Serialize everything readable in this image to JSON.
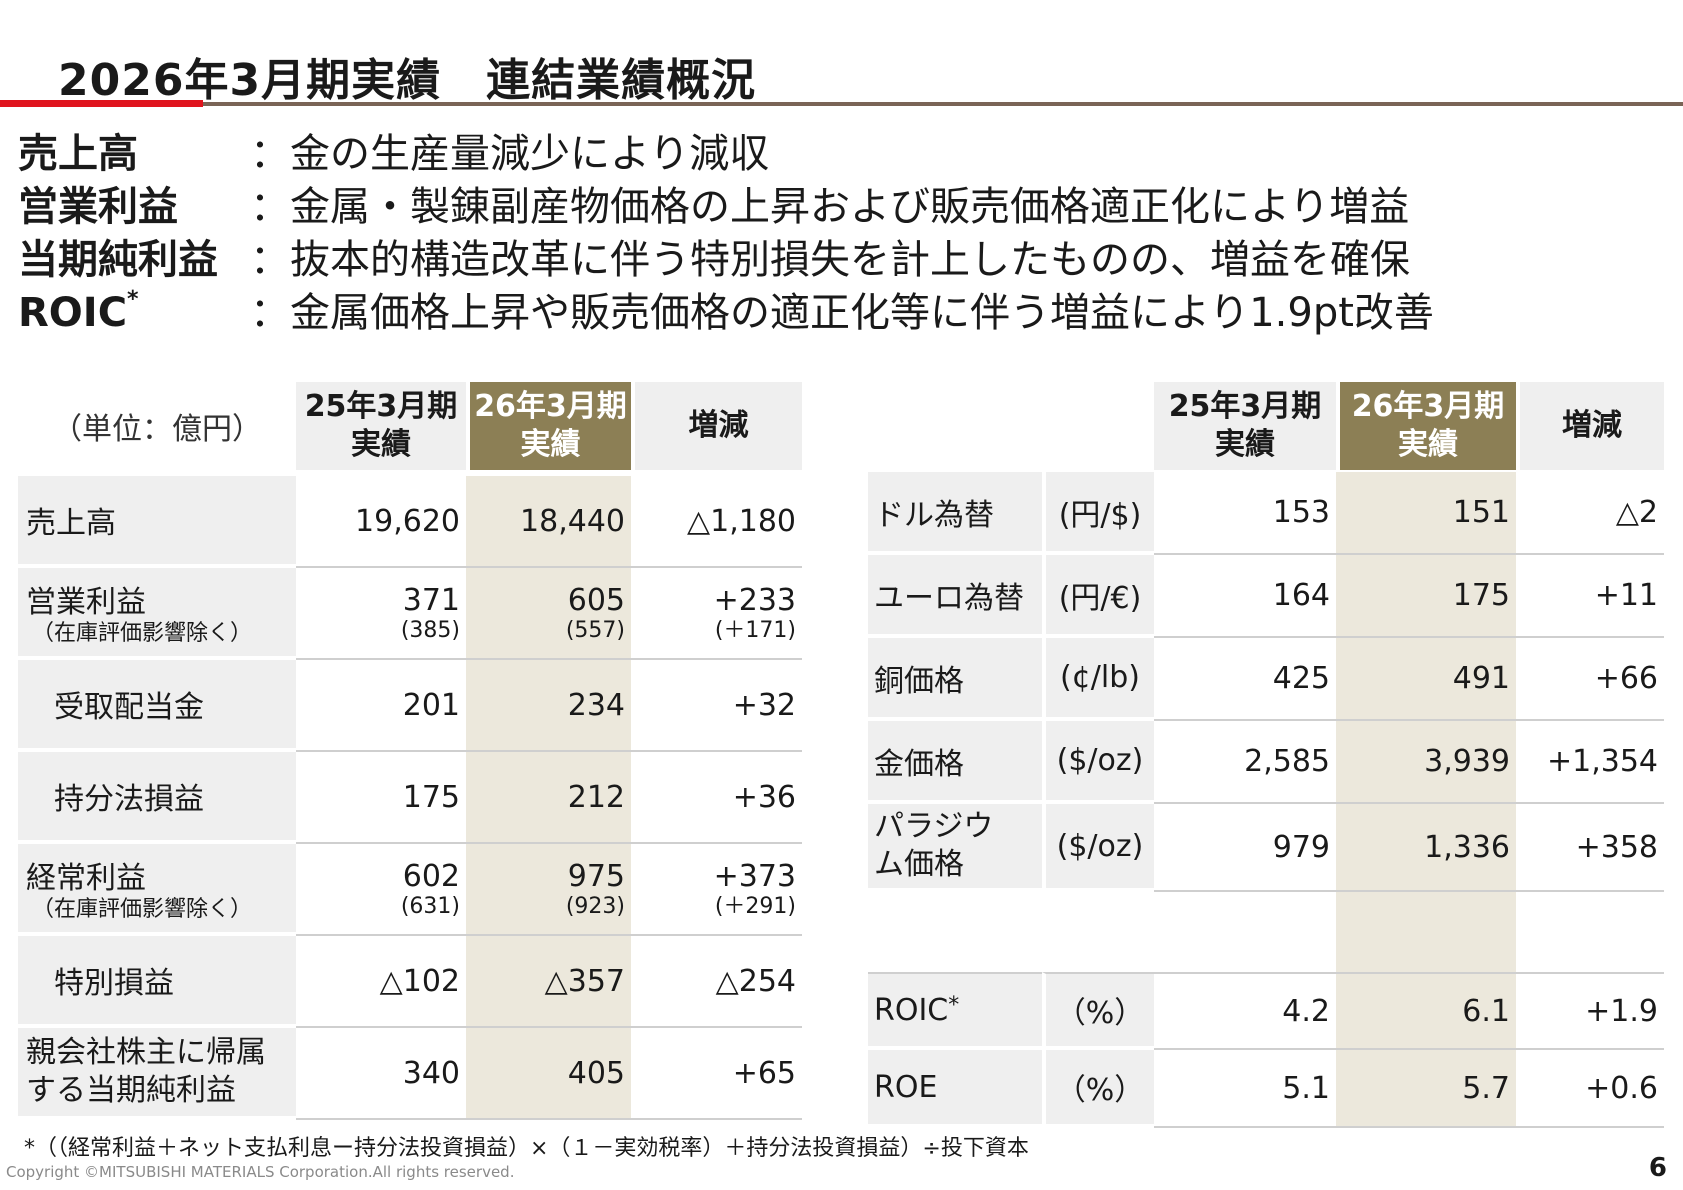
{
  "title": "2026年3月期実績　連結業績概況",
  "summary": [
    {
      "label": "売上高",
      "sup": "",
      "text": "：金の生産量減少により減収"
    },
    {
      "label": "営業利益",
      "sup": "",
      "text": "：金属・製錬副産物価格の上昇および販売価格適正化により増益"
    },
    {
      "label": "当期純利益",
      "sup": "",
      "text": "：抜本的構造改革に伴う特別損失を計上したものの、増益を確保"
    },
    {
      "label": "ROIC",
      "sup": "*",
      "text": "：金属価格上昇や販売価格の適正化等に伴う増益により1.9pt改善"
    }
  ],
  "left_table": {
    "unit": "（単位：億円）",
    "headers": [
      {
        "line1": "25年3月期",
        "line2": "実績"
      },
      {
        "line1": "26年3月期",
        "line2": "実績"
      },
      {
        "line1": "増減",
        "line2": ""
      }
    ],
    "rows": [
      {
        "label": "売上高",
        "sublabel": "",
        "prev": "19,620",
        "prev_sub": "",
        "cur": "18,440",
        "cur_sub": "",
        "diff": "△1,180",
        "diff_sub": ""
      },
      {
        "label": "営業利益",
        "sublabel": "（在庫評価影響除く）",
        "prev": "371",
        "prev_sub": "(385)",
        "cur": "605",
        "cur_sub": "(557)",
        "diff": "+233",
        "diff_sub": "(＋171)"
      },
      {
        "label": "受取配当金",
        "sublabel": "",
        "prev": "201",
        "prev_sub": "",
        "cur": "234",
        "cur_sub": "",
        "diff": "+32",
        "diff_sub": ""
      },
      {
        "label": "持分法損益",
        "sublabel": "",
        "prev": "175",
        "prev_sub": "",
        "cur": "212",
        "cur_sub": "",
        "diff": "+36",
        "diff_sub": ""
      },
      {
        "label": "経常利益",
        "sublabel": "（在庫評価影響除く）",
        "prev": "602",
        "prev_sub": "(631)",
        "cur": "975",
        "cur_sub": "(923)",
        "diff": "+373",
        "diff_sub": "(＋291)"
      },
      {
        "label": "特別損益",
        "sublabel": "",
        "prev": "△102",
        "prev_sub": "",
        "cur": "△357",
        "cur_sub": "",
        "diff": "△254",
        "diff_sub": ""
      },
      {
        "label": "親会社株主に帰属する当期純利益",
        "sublabel": "",
        "prev": "340",
        "prev_sub": "",
        "cur": "405",
        "cur_sub": "",
        "diff": "+65",
        "diff_sub": ""
      }
    ]
  },
  "right_table": {
    "headers": [
      {
        "line1": "25年3月期",
        "line2": "実績"
      },
      {
        "line1": "26年3月期",
        "line2": "実績"
      },
      {
        "line1": "増減",
        "line2": ""
      }
    ],
    "rows": [
      {
        "label": "ドル為替",
        "unit": "(円/$)",
        "prev": "153",
        "cur": "151",
        "diff": "△2"
      },
      {
        "label": "ユーロ為替",
        "unit": "(円/€)",
        "prev": "164",
        "cur": "175",
        "diff": "+11"
      },
      {
        "label": "銅価格",
        "unit": "(¢/lb)",
        "prev": "425",
        "cur": "491",
        "diff": "+66"
      },
      {
        "label": "金価格",
        "unit": "($/oz)",
        "prev": "2,585",
        "cur": "3,939",
        "diff": "+1,354"
      },
      {
        "label": "パラジウム価格",
        "unit": "($/oz)",
        "prev": "979",
        "cur": "1,336",
        "diff": "+358"
      }
    ],
    "ratio_rows": [
      {
        "label": "ROIC",
        "sup": "*",
        "unit": "（%）",
        "prev": "4.2",
        "cur": "6.1",
        "diff": "+1.9"
      },
      {
        "label": "ROE",
        "sup": "",
        "unit": "（%）",
        "prev": "5.1",
        "cur": "5.7",
        "diff": "+0.6"
      }
    ]
  },
  "footnote": "*（（経常利益＋ネット支払利息ー持分法投資損益）×（１－実効税率）＋持分法投資損益）÷投下資本",
  "copyright": "Copyright ©MITSUBISHI MATERIALS Corporation.All rights reserved.",
  "page_number": "6"
}
